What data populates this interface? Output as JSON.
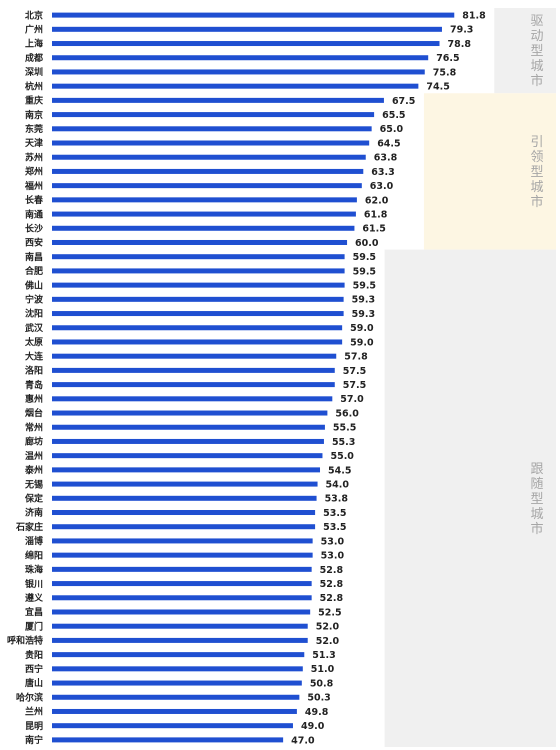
{
  "chart_data": {
    "type": "bar",
    "orientation": "horizontal",
    "categories": [
      "北京",
      "广州",
      "上海",
      "成都",
      "深圳",
      "杭州",
      "重庆",
      "南京",
      "东莞",
      "天津",
      "苏州",
      "郑州",
      "福州",
      "长春",
      "南通",
      "长沙",
      "西安",
      "南昌",
      "合肥",
      "佛山",
      "宁波",
      "沈阳",
      "武汉",
      "太原",
      "大连",
      "洛阳",
      "青岛",
      "惠州",
      "烟台",
      "常州",
      "廊坊",
      "温州",
      "泰州",
      "无锡",
      "保定",
      "济南",
      "石家庄",
      "淄博",
      "绵阳",
      "珠海",
      "银川",
      "遵义",
      "宜昌",
      "厦门",
      "呼和浩特",
      "贵阳",
      "西宁",
      "唐山",
      "哈尔滨",
      "兰州",
      "昆明",
      "南宁"
    ],
    "values": [
      81.8,
      79.3,
      78.8,
      76.5,
      75.8,
      74.5,
      67.5,
      65.5,
      65.0,
      64.5,
      63.8,
      63.3,
      63.0,
      62.0,
      61.8,
      61.5,
      60.0,
      59.5,
      59.5,
      59.5,
      59.3,
      59.3,
      59.0,
      59.0,
      57.8,
      57.5,
      57.5,
      57.0,
      56.0,
      55.5,
      55.3,
      55.0,
      54.5,
      54.0,
      53.8,
      53.5,
      53.5,
      53.0,
      53.0,
      52.8,
      52.8,
      52.8,
      52.5,
      52.0,
      52.0,
      51.3,
      51.0,
      50.8,
      50.3,
      49.8,
      49.0,
      47.0
    ],
    "value_labels": [
      "81.8",
      "79.3",
      "78.8",
      "76.5",
      "75.8",
      "74.5",
      "67.5",
      "65.5",
      "65.0",
      "64.5",
      "63.8",
      "63.3",
      "63.0",
      "62.0",
      "61.8",
      "61.5",
      "60.0",
      "59.5",
      "59.5",
      "59.5",
      "59.3",
      "59.3",
      "59.0",
      "59.0",
      "57.8",
      "57.5",
      "57.5",
      "57.0",
      "56.0",
      "55.5",
      "55.3",
      "55.0",
      "54.5",
      "54.0",
      "53.8",
      "53.5",
      "53.5",
      "53.0",
      "53.0",
      "52.8",
      "52.8",
      "52.8",
      "52.5",
      "52.0",
      "52.0",
      "51.3",
      "51.0",
      "50.8",
      "50.3",
      "49.8",
      "49.0",
      "47.0"
    ],
    "groups": [
      {
        "label": "驱动型城市",
        "start": 0,
        "end": 5,
        "color": "#f0f0f0"
      },
      {
        "label": "引领型城市",
        "start": 6,
        "end": 16,
        "color": "#fdf6e3"
      },
      {
        "label": "跟随型城市",
        "start": 17,
        "end": 51,
        "color": "#f0f0f0"
      }
    ],
    "bar_color": "#1f4fd1",
    "xlim": [
      0,
      85
    ],
    "title": "",
    "xlabel": "",
    "ylabel": "",
    "grid": false,
    "legend": "none"
  }
}
